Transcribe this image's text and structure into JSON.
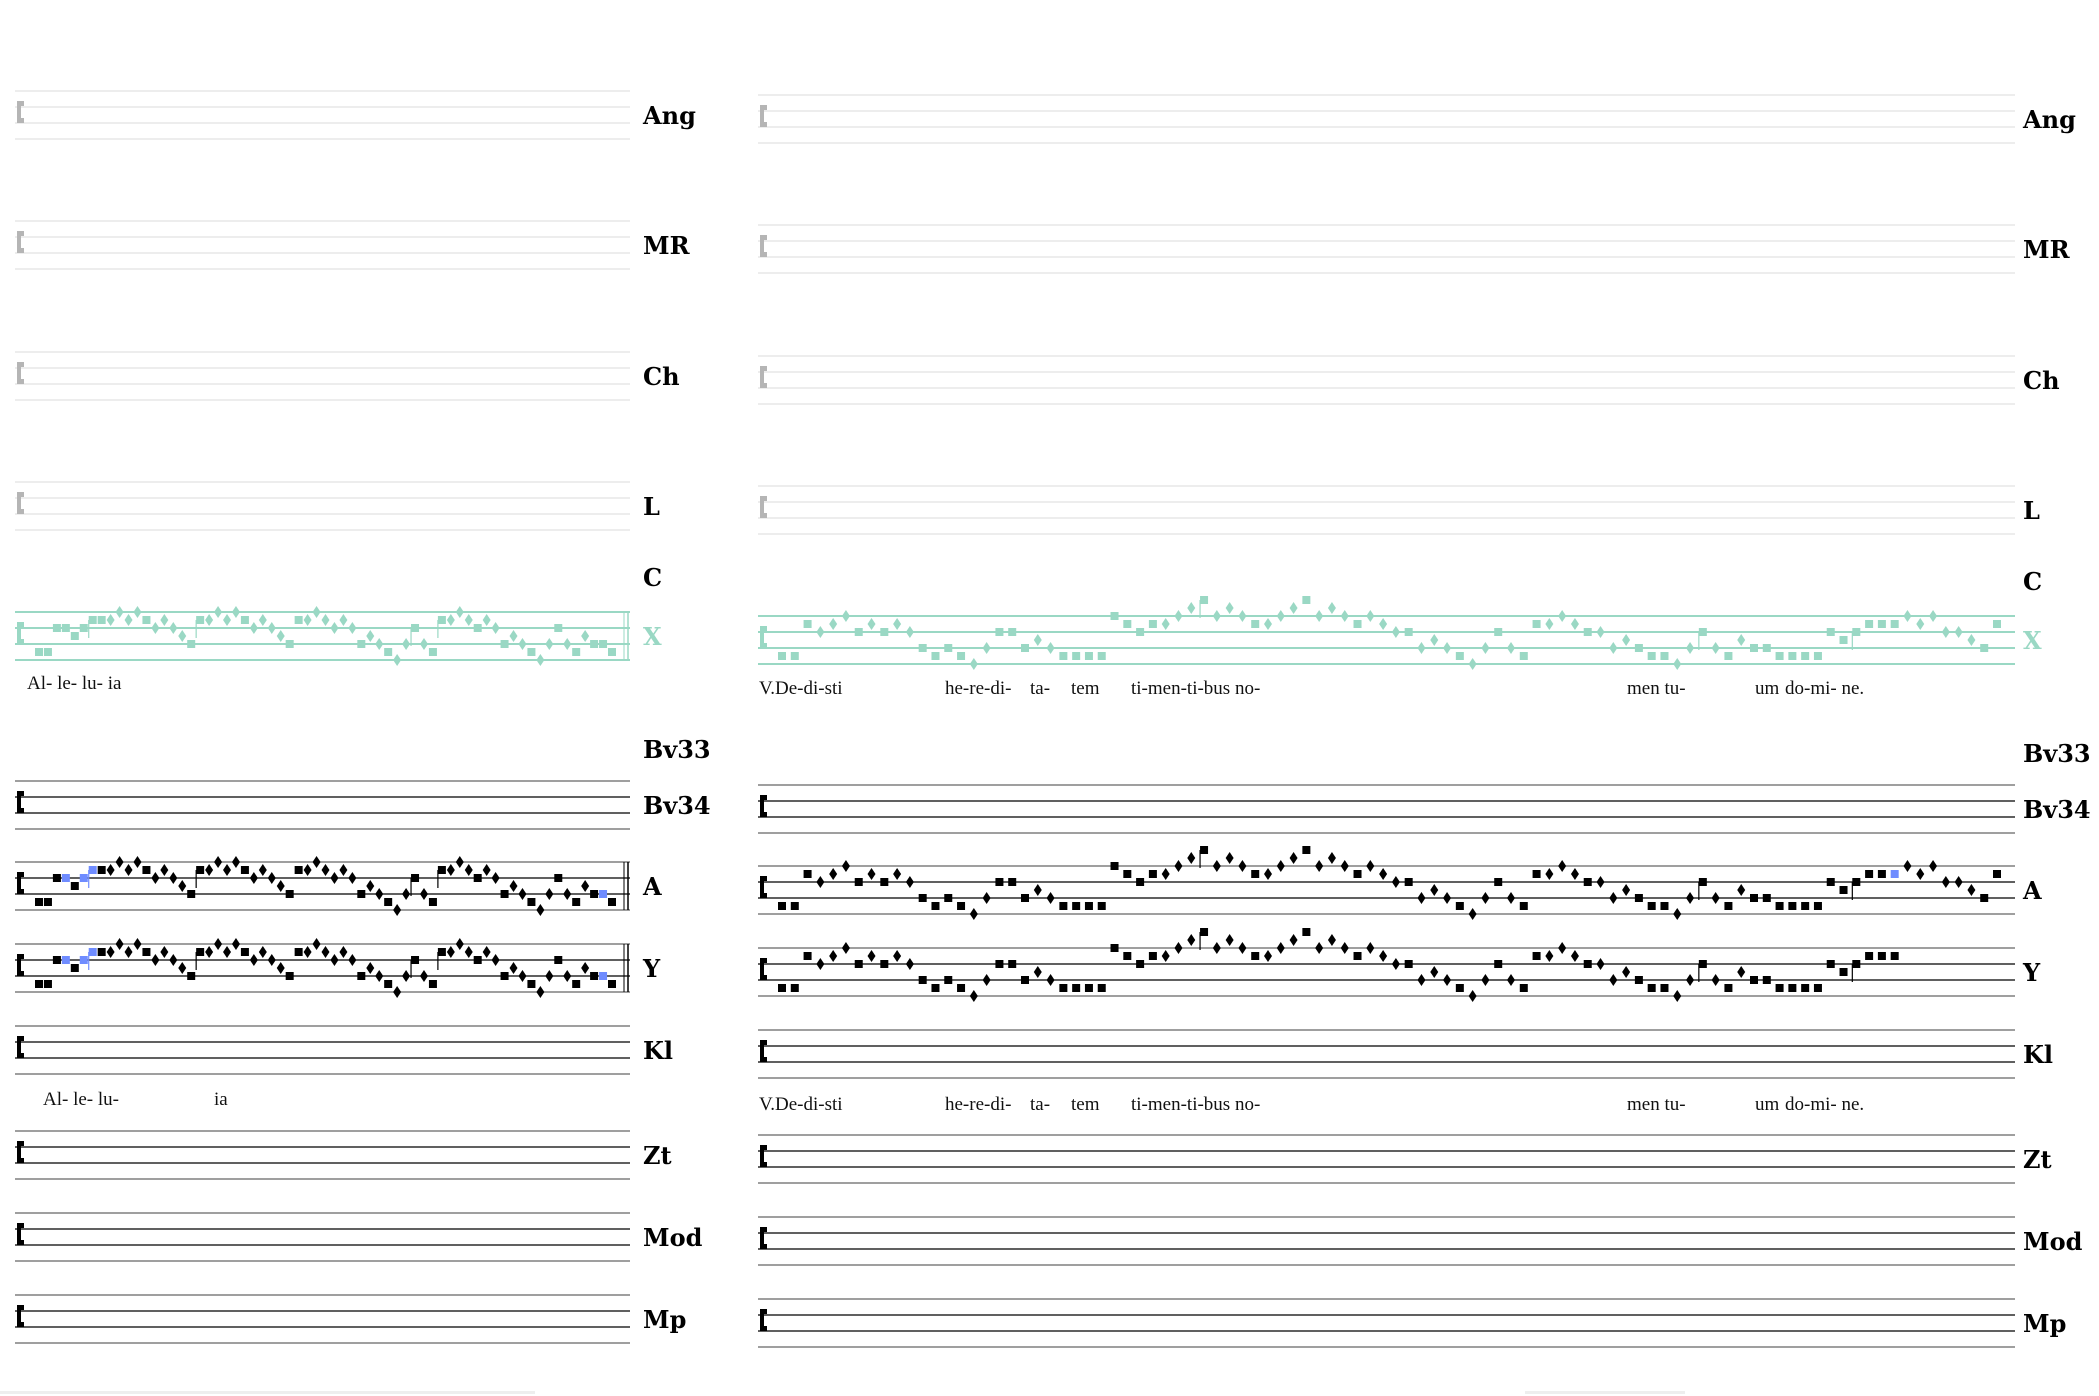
{
  "colors": {
    "grey": "#c8c8c8",
    "green": "#9ad8c4",
    "black": "#000000",
    "highlight": "#6f8cff"
  },
  "melodies": {
    "alleluia": [
      "s1",
      "s1",
      "s4",
      "bs4",
      "s3",
      "bs4",
      "bs5",
      "s5",
      "d5",
      "d6",
      "d5",
      "d6",
      "s5",
      "d4",
      "d5",
      "d4",
      "d3",
      "s2",
      "s5",
      "d5",
      "d6",
      "d5",
      "d6",
      "s5",
      "d4",
      "d5",
      "d4",
      "d3",
      "s2",
      "s5",
      "d5",
      "d6",
      "d5",
      "d4",
      "d5",
      "d4",
      "s2",
      "d3",
      "d2",
      "s1",
      "d0",
      "d2",
      "s4",
      "d2",
      "s1",
      "s5",
      "d5",
      "d6",
      "d5",
      "s4",
      "d5",
      "d4",
      "s2",
      "d3",
      "d2",
      "s1",
      "d0",
      "d2",
      "s4",
      "d2",
      "s1",
      "d3",
      "s2",
      "bs2",
      "s1"
    ],
    "verse": [
      "s1",
      "s1",
      "s5",
      "d4",
      "d5",
      "d6",
      "s4",
      "d5",
      "s4",
      "d5",
      "d4",
      "s2",
      "s1",
      "s2",
      "s1",
      "d0",
      "d2",
      "s4",
      "s4",
      "s2",
      "d3",
      "d2",
      "s1",
      "s1",
      "s1",
      "s1",
      "s6",
      "s5",
      "s4",
      "s5",
      "d5",
      "d6",
      "d7",
      "s8",
      "d6",
      "d7",
      "d6",
      "s5",
      "d5",
      "d6",
      "d7",
      "s8",
      "d6",
      "d7",
      "d6",
      "s5",
      "d6",
      "d5",
      "d4",
      "s4",
      "d2",
      "d3",
      "d2",
      "s1",
      "d0",
      "d2",
      "s4",
      "d2",
      "s1",
      "s5",
      "d5",
      "d6",
      "d5",
      "s4",
      "d4",
      "d2",
      "d3",
      "s2",
      "s1",
      "s1",
      "d0",
      "d2",
      "s4",
      "d2",
      "s1",
      "d3",
      "s2",
      "s2",
      "s1",
      "s1",
      "s1",
      "s1",
      "s4",
      "s3",
      "s4",
      "s5",
      "s5",
      "bs5",
      "d6",
      "d5",
      "d6",
      "d4",
      "d4",
      "d3",
      "s2",
      "s5"
    ]
  },
  "left_panel": {
    "staves": [
      {
        "label": "Ang",
        "style": "grey"
      },
      {
        "label": "MR",
        "style": "grey"
      },
      {
        "label": "Ch",
        "style": "grey"
      },
      {
        "label": "L",
        "style": "grey"
      },
      {
        "label": "X",
        "style": "green",
        "melody": "alleluia",
        "double_bar": true
      },
      {
        "label": "Bv34",
        "style": "black"
      },
      {
        "label": "A",
        "style": "black",
        "melody": "alleluia",
        "double_bar": true,
        "highlight": true
      },
      {
        "label": "Y",
        "style": "black",
        "melody": "alleluia",
        "double_bar": true,
        "highlight": true
      },
      {
        "label": "Kl",
        "style": "black"
      },
      {
        "label": "Zt",
        "style": "black"
      },
      {
        "label": "Mod",
        "style": "black"
      },
      {
        "label": "Mp",
        "style": "black"
      }
    ],
    "extra_labels": {
      "c": "C",
      "bv33": "Bv33"
    },
    "lyrics_x": [
      "Al- le- lu- ia"
    ],
    "lyrics_kl": [
      "Al- le- lu-",
      "ia"
    ]
  },
  "right_panel": {
    "staves": [
      {
        "label": "Ang",
        "style": "grey"
      },
      {
        "label": "MR",
        "style": "grey"
      },
      {
        "label": "Ch",
        "style": "grey"
      },
      {
        "label": "L",
        "style": "grey"
      },
      {
        "label": "X",
        "style": "green",
        "melody": "verse"
      },
      {
        "label": "Bv34",
        "style": "black"
      },
      {
        "label": "A",
        "style": "black",
        "melody": "verse",
        "highlight": true
      },
      {
        "label": "Y",
        "style": "black",
        "melody": "verse",
        "truncate": 88
      },
      {
        "label": "Kl",
        "style": "black"
      },
      {
        "label": "Zt",
        "style": "black"
      },
      {
        "label": "Mod",
        "style": "black"
      },
      {
        "label": "Mp",
        "style": "black"
      }
    ],
    "extra_labels": {
      "c": "C",
      "bv33": "Bv33"
    },
    "lyrics": [
      "V.De-di-sti",
      "he-re-di-",
      "ta-",
      "tem",
      "ti-men-ti-bus no-",
      "men tu-",
      "um",
      "do-mi- ne."
    ]
  }
}
